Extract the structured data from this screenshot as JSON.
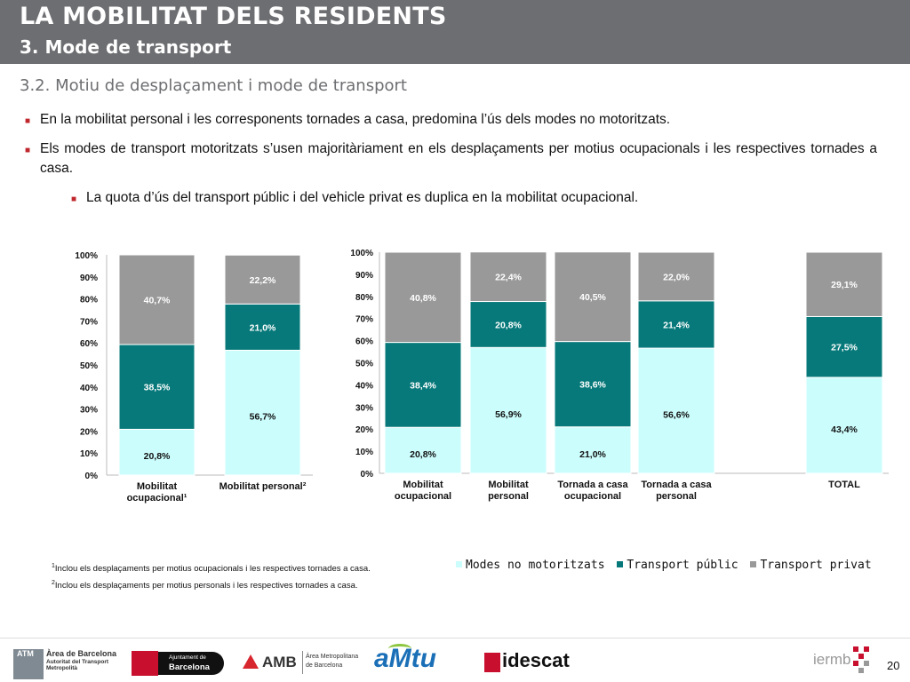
{
  "header": {
    "title": "LA MOBILITAT DELS RESIDENTS",
    "subtitle": "3. Mode de transport"
  },
  "section_title": "3.2. Motiu de desplaçament i mode de transport",
  "bullets": [
    "En la mobilitat personal i les corresponents tornades a casa, predomina l’ús dels modes no motoritzats.",
    "Els modes de transport motoritzats s’usen majoritàriament en els desplaçaments per motius ocupacionals i les respectives tornades a casa.",
    "La quota d’ús del transport públic i del vehicle privat es duplica en la mobilitat ocupacional."
  ],
  "colors": {
    "no_motoritzats": "#ccfdfd",
    "public": "#08797a",
    "privat": "#999999",
    "header": "#6d6e71",
    "bullet": "#c0272d"
  },
  "chart_data": [
    {
      "type": "bar",
      "stacked": true,
      "percent": true,
      "categories": [
        "Mobilitat ocupacional¹",
        "Mobilitat personal²"
      ],
      "series": [
        {
          "name": "Modes no motoritzats",
          "values": [
            20.8,
            56.7
          ],
          "labels": [
            "20,8%",
            "56,7%"
          ]
        },
        {
          "name": "Transport públic",
          "values": [
            38.5,
            21.0
          ],
          "labels": [
            "38,5%",
            "21,0%"
          ]
        },
        {
          "name": "Transport privat",
          "values": [
            40.7,
            22.2
          ],
          "labels": [
            "40,7%",
            "22,2%"
          ]
        }
      ],
      "yticks": [
        "0%",
        "10%",
        "20%",
        "30%",
        "40%",
        "50%",
        "60%",
        "70%",
        "80%",
        "90%",
        "100%"
      ],
      "ylim": [
        0,
        100
      ]
    },
    {
      "type": "bar",
      "stacked": true,
      "percent": true,
      "categories": [
        "Mobilitat ocupacional",
        "Mobilitat personal",
        "Tornada a casa ocupacional",
        "Tornada a casa personal",
        "TOTAL"
      ],
      "series": [
        {
          "name": "Modes no motoritzats",
          "values": [
            20.8,
            56.9,
            21.0,
            56.6,
            43.4
          ],
          "labels": [
            "20,8%",
            "56,9%",
            "21,0%",
            "56,6%",
            "43,4%"
          ]
        },
        {
          "name": "Transport públic",
          "values": [
            38.4,
            20.8,
            38.6,
            21.4,
            27.5
          ],
          "labels": [
            "38,4%",
            "20,8%",
            "38,6%",
            "21,4%",
            "27,5%"
          ]
        },
        {
          "name": "Transport privat",
          "values": [
            40.8,
            22.4,
            40.5,
            22.0,
            29.1
          ],
          "labels": [
            "40,8%",
            "22,4%",
            "40,5%",
            "22,0%",
            "29,1%"
          ]
        }
      ],
      "yticks": [
        "0%",
        "10%",
        "20%",
        "30%",
        "40%",
        "50%",
        "60%",
        "70%",
        "80%",
        "90%",
        "100%"
      ],
      "ylim": [
        0,
        100
      ],
      "legend": [
        "Modes no motoritzats",
        "Transport públic",
        "Transport privat"
      ]
    }
  ],
  "legend": [
    "Modes no motoritzats",
    "Transport públic",
    "Transport privat"
  ],
  "footnotes": [
    {
      "mark": "1",
      "text": "Inclou els desplaçaments per motius ocupacionals i les respectives tornades a casa."
    },
    {
      "mark": "2",
      "text": "Inclou els desplaçaments per motius personals i les respectives tornades a casa."
    }
  ],
  "logos": {
    "atm": {
      "badge": "ATM",
      "line1": "Àrea de Barcelona",
      "line2": "Autoritat del Transport",
      "line3": "Metropolità"
    },
    "ajuntament": {
      "line1": "Ajuntament de",
      "line2": "Barcelona"
    },
    "amb": {
      "name": "AMB",
      "line1": "Àrea Metropolitana",
      "line2": "de Barcelona"
    },
    "amtu": {
      "name": "aMtu"
    },
    "idescat": {
      "name": "idescat"
    },
    "iermb": {
      "name": "iermb"
    }
  },
  "page_number": "20"
}
